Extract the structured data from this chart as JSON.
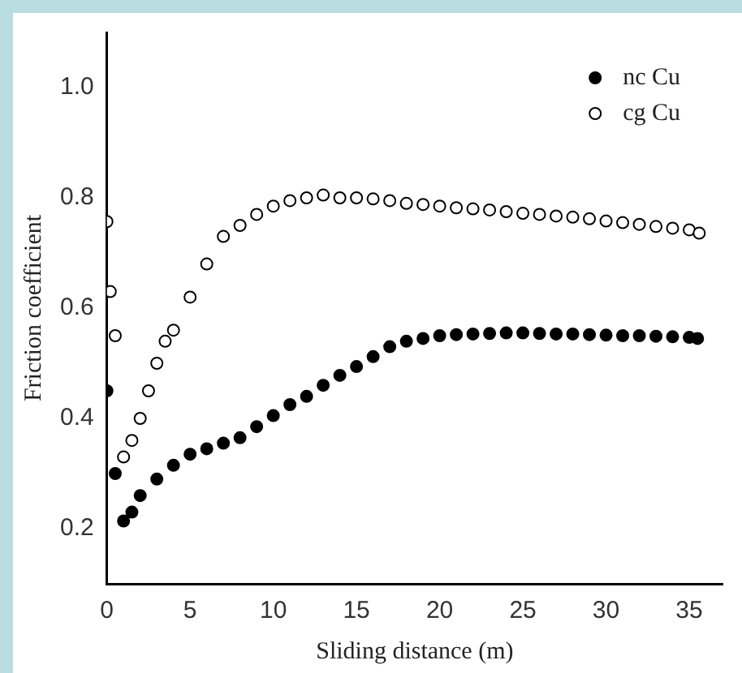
{
  "chart_data": {
    "type": "scatter",
    "xlabel": "Sliding distance (m)",
    "ylabel": "Friction coefficient",
    "xlim": [
      0,
      37
    ],
    "xticks": [
      0,
      5,
      10,
      15,
      20,
      25,
      30,
      35
    ],
    "ylim": [
      0.1,
      1.1
    ],
    "yticks": [
      {
        "value": 0.2,
        "label": "0.2"
      },
      {
        "value": 0.4,
        "label": "0.4"
      },
      {
        "value": 0.6,
        "label": "0.6"
      },
      {
        "value": 0.8,
        "label": "0.8"
      },
      {
        "value": 1,
        "label": "1.0"
      }
    ],
    "marker": "circle",
    "grid": false,
    "legend": "top right",
    "series": [
      {
        "name": "nc Cu",
        "color": "#000000",
        "x": [
          0,
          0.5,
          1,
          1.5,
          2,
          3,
          4,
          5,
          6,
          7,
          8,
          9,
          10,
          11,
          12,
          13,
          14,
          15,
          16,
          17,
          18,
          19,
          20,
          21,
          22,
          23,
          24,
          25,
          26,
          27,
          28,
          29,
          30,
          31,
          32,
          33,
          34,
          35,
          35.5
        ],
        "values": [
          0.45,
          0.3,
          0.214,
          0.23,
          0.26,
          0.29,
          0.315,
          0.335,
          0.345,
          0.355,
          0.365,
          0.385,
          0.405,
          0.425,
          0.44,
          0.46,
          0.478,
          0.494,
          0.512,
          0.53,
          0.54,
          0.545,
          0.55,
          0.552,
          0.553,
          0.554,
          0.555,
          0.555,
          0.554,
          0.553,
          0.553,
          0.552,
          0.551,
          0.55,
          0.55,
          0.549,
          0.548,
          0.547,
          0.545
        ]
      },
      {
        "name": "cg Cu",
        "color": "#ffffff",
        "x": [
          0,
          0.2,
          0.5,
          1,
          1.5,
          2,
          2.5,
          3,
          3.5,
          4,
          5,
          6,
          7,
          8,
          9,
          10,
          11,
          12,
          13,
          14,
          15,
          16,
          17,
          18,
          19,
          20,
          21,
          22,
          23,
          24,
          25,
          26,
          27,
          28,
          29,
          30,
          31,
          32,
          33,
          34,
          35,
          35.6
        ],
        "values": [
          0.757,
          0.63,
          0.55,
          0.33,
          0.36,
          0.4,
          0.45,
          0.5,
          0.54,
          0.56,
          0.62,
          0.68,
          0.73,
          0.75,
          0.77,
          0.785,
          0.795,
          0.8,
          0.805,
          0.8,
          0.8,
          0.798,
          0.795,
          0.79,
          0.788,
          0.785,
          0.782,
          0.78,
          0.778,
          0.775,
          0.772,
          0.77,
          0.767,
          0.765,
          0.762,
          0.758,
          0.755,
          0.752,
          0.748,
          0.745,
          0.742,
          0.736
        ]
      }
    ]
  }
}
